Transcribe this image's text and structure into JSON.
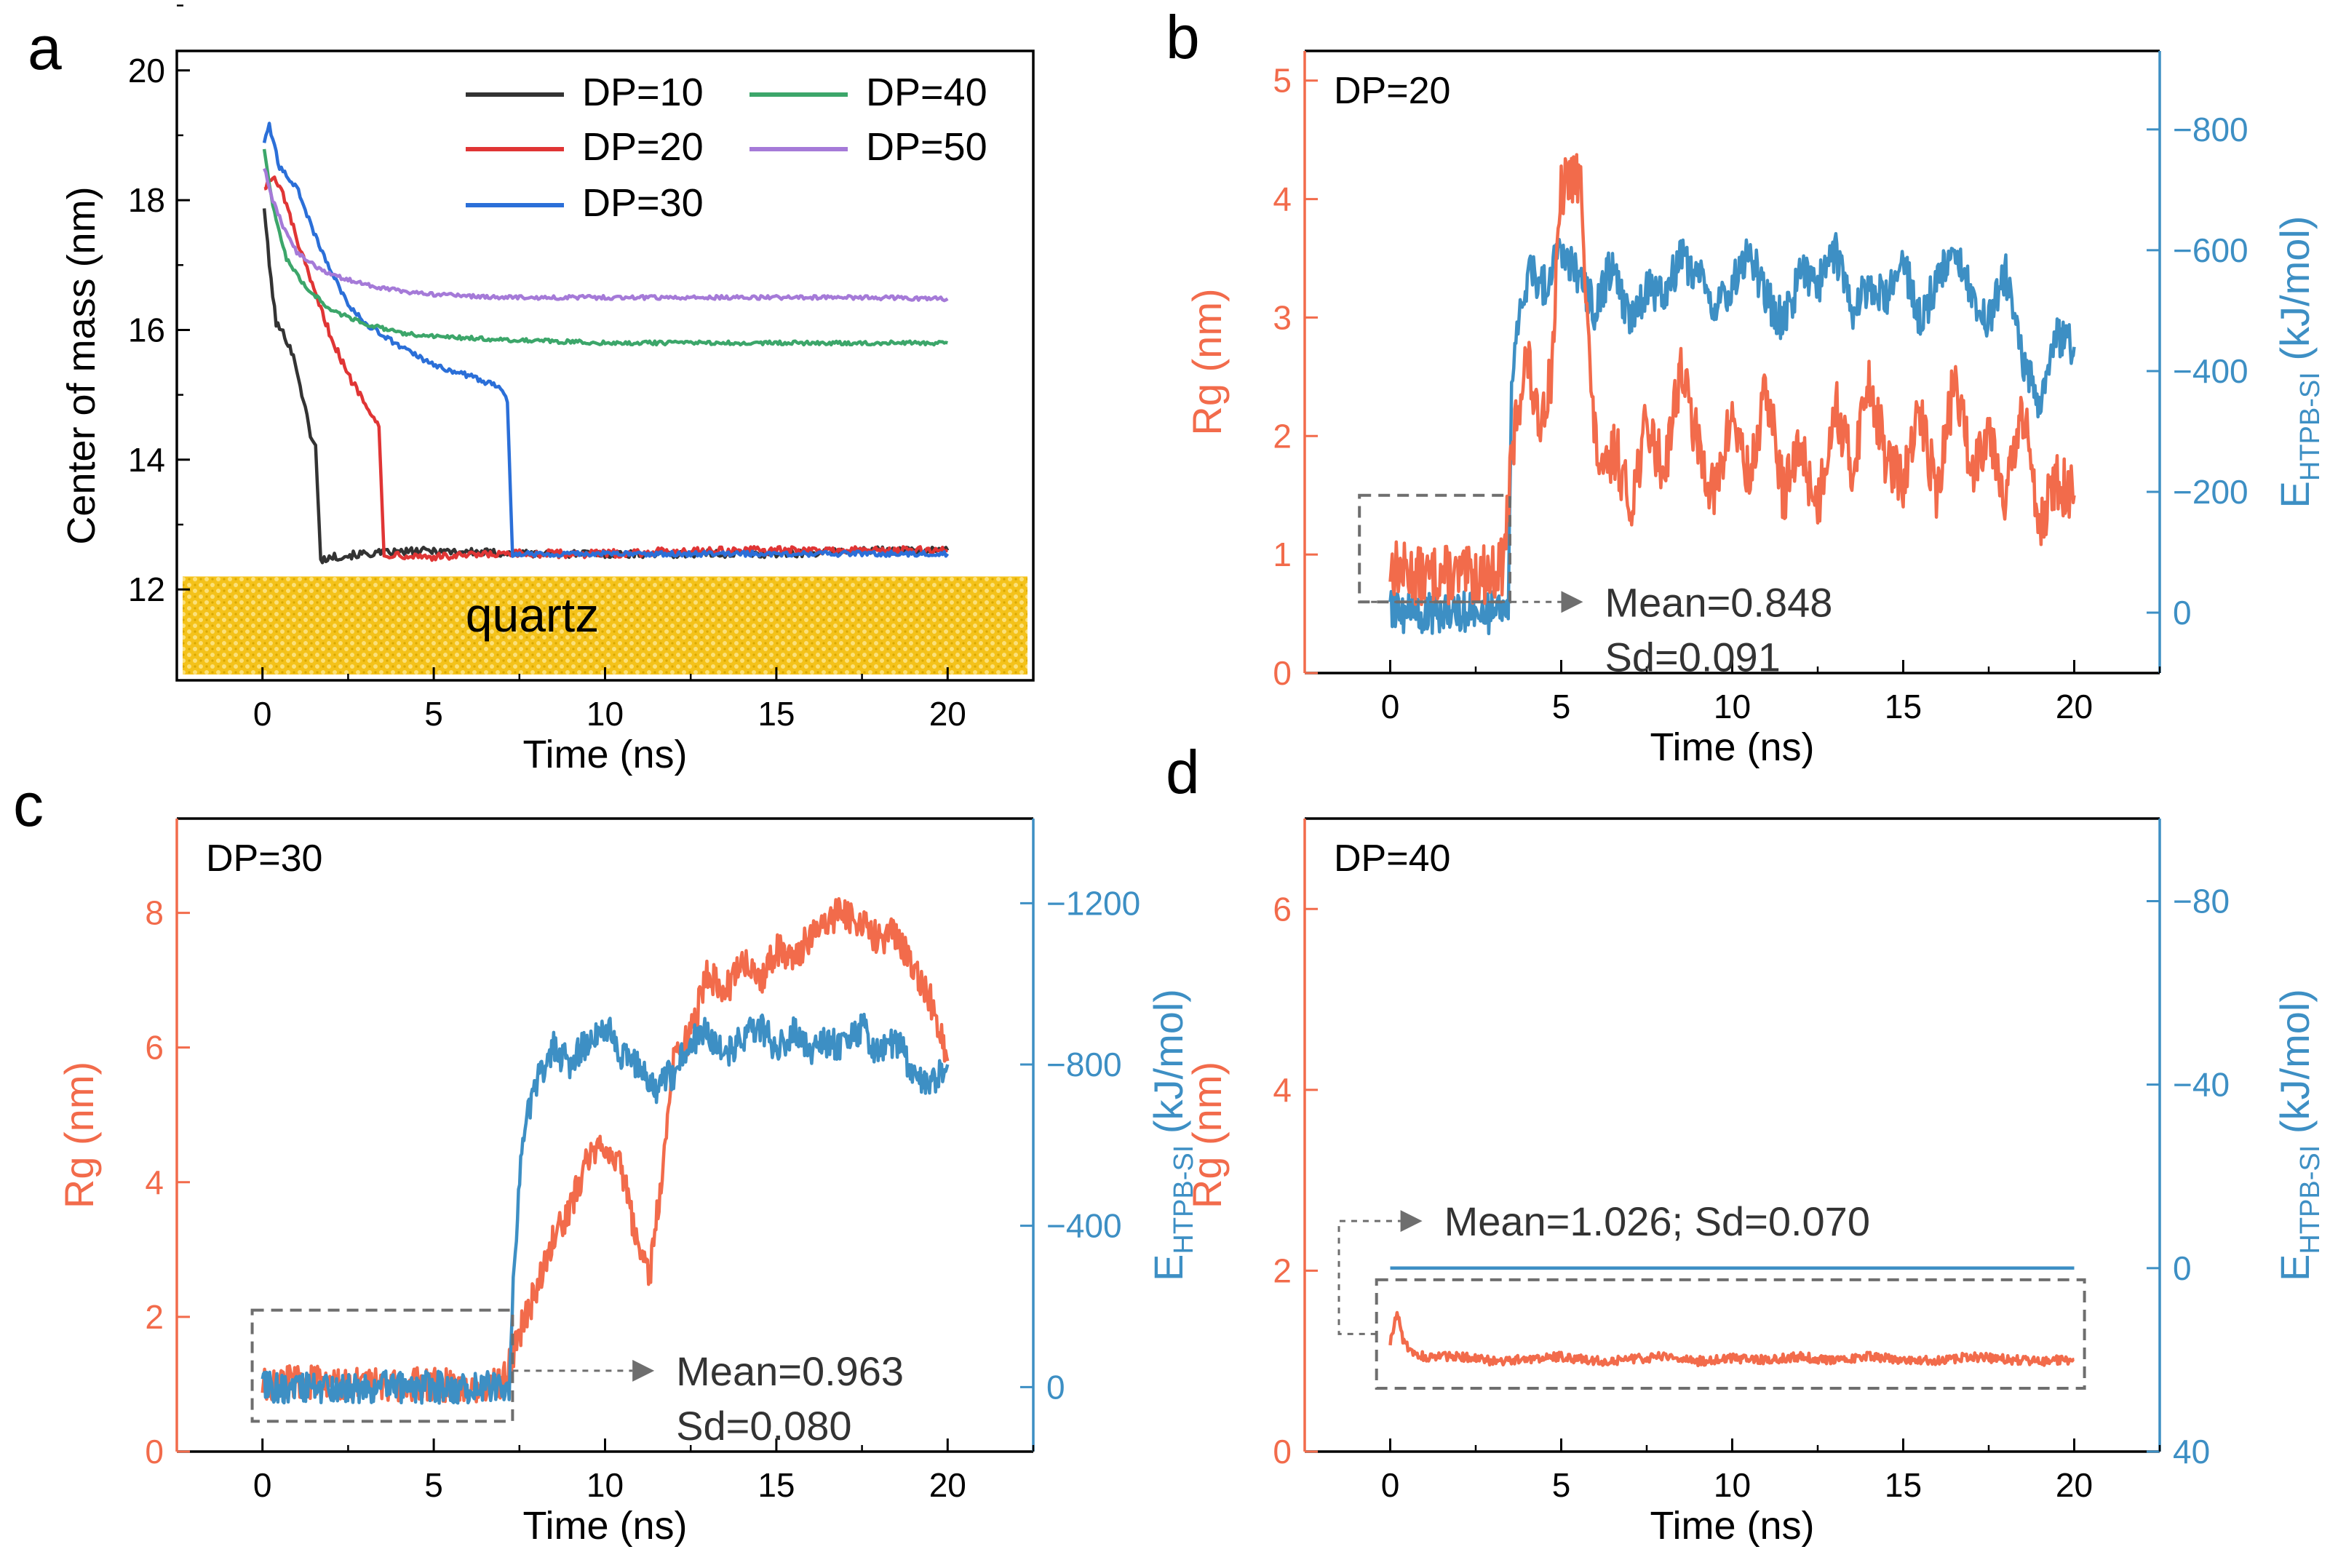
{
  "figure": {
    "colors": {
      "rg": "#f26b4b",
      "energy": "#3d8fc4",
      "axis": "#000000",
      "dash": "#6e6e6e",
      "quartz": "#f2c200"
    },
    "panels": {
      "a": {
        "label": "a",
        "xlabel": "Time (ns)",
        "ylabel": "Center of mass (nm)",
        "x_ticks": [
          "0",
          "5",
          "10",
          "15",
          "20"
        ],
        "y_ticks": [
          "12",
          "14",
          "16",
          "18",
          "20"
        ],
        "substrate_label": "quartz"
      },
      "b": {
        "label": "b",
        "title": "DP=20",
        "xlabel": "Time (ns)",
        "ylabel_left": "Rg (nm)",
        "ylabel_right_base": "E",
        "ylabel_right_sub": "HTPB-SI",
        "ylabel_right_unit": " (kJ/mol)",
        "x_ticks": [
          "0",
          "5",
          "10",
          "15",
          "20"
        ],
        "y_left_ticks": [
          "0",
          "1",
          "2",
          "3",
          "4",
          "5"
        ],
        "y_right_ticks": [
          "0",
          "−200",
          "−400",
          "−600",
          "−800"
        ],
        "annotation_lines": [
          "Mean=0.848",
          "Sd=0.091"
        ]
      },
      "c": {
        "label": "c",
        "title": "DP=30",
        "xlabel": "Time (ns)",
        "ylabel_left": "Rg (nm)",
        "ylabel_right_base": "E",
        "ylabel_right_sub": "HTPB-SI",
        "ylabel_right_unit": " (kJ/mol)",
        "x_ticks": [
          "0",
          "5",
          "10",
          "15",
          "20"
        ],
        "y_left_ticks": [
          "0",
          "2",
          "4",
          "6",
          "8"
        ],
        "y_right_ticks": [
          "0",
          "−400",
          "−800",
          "−1200"
        ],
        "annotation_lines": [
          "Mean=0.963",
          "Sd=0.080"
        ]
      },
      "d": {
        "label": "d",
        "title": "DP=40",
        "xlabel": "Time (ns)",
        "ylabel_left": "Rg (nm)",
        "ylabel_right_base": "E",
        "ylabel_right_sub": "HTPB-SI",
        "ylabel_right_unit": " (kJ/mol)",
        "x_ticks": [
          "0",
          "5",
          "10",
          "15",
          "20"
        ],
        "y_left_ticks": [
          "0",
          "2",
          "4",
          "6"
        ],
        "y_right_ticks": [
          "40",
          "0",
          "−40",
          "−80"
        ],
        "annotation_lines": [
          "Mean=1.026; Sd=0.070"
        ]
      }
    }
  },
  "chart_data": [
    {
      "id": "a",
      "type": "line",
      "title": "",
      "xlabel": "Time (ns)",
      "ylabel": "Center of mass (nm)",
      "xlim": [
        -2.5,
        22.5
      ],
      "ylim": [
        10.6,
        20.3
      ],
      "grid": false,
      "legend": "top-right",
      "annotation": "quartz",
      "substrate_top": 12.2,
      "series": [
        {
          "name": "DP=10",
          "color": "#333333",
          "x": [
            0.05,
            0.2,
            0.4,
            0.6,
            0.8,
            1.0,
            1.2,
            1.4,
            1.55,
            1.7,
            2.0,
            3.0,
            5.0,
            7.5,
            10,
            12.5,
            15,
            17.5,
            20
          ],
          "y": [
            17.9,
            17.0,
            16.1,
            15.95,
            15.75,
            15.4,
            14.9,
            14.4,
            14.2,
            12.45,
            12.5,
            12.55,
            12.6,
            12.55,
            12.55,
            12.55,
            12.55,
            12.6,
            12.6
          ]
        },
        {
          "name": "DP=20",
          "color": "#e03535",
          "x": [
            0.05,
            0.3,
            0.6,
            1.0,
            1.5,
            2.0,
            2.5,
            3.0,
            3.4,
            3.55,
            3.8,
            5.0,
            7.5,
            10,
            12.5,
            15,
            17.5,
            20
          ],
          "y": [
            18.2,
            18.35,
            18.1,
            17.4,
            16.6,
            15.9,
            15.3,
            14.9,
            14.5,
            12.5,
            12.55,
            12.5,
            12.55,
            12.55,
            12.6,
            12.6,
            12.6,
            12.6
          ]
        },
        {
          "name": "DP=30",
          "color": "#2b6fd8",
          "x": [
            0.05,
            0.2,
            0.5,
            1.0,
            1.5,
            2.0,
            2.5,
            3.0,
            4.0,
            5.0,
            6.0,
            7.0,
            7.15,
            7.3,
            7.6,
            10,
            12.5,
            15,
            17.5,
            20
          ],
          "y": [
            18.9,
            19.15,
            18.5,
            18.2,
            17.5,
            16.9,
            16.4,
            16.1,
            15.75,
            15.45,
            15.3,
            15.1,
            14.9,
            12.55,
            12.55,
            12.55,
            12.55,
            12.55,
            12.55,
            12.55
          ]
        },
        {
          "name": "DP=40",
          "color": "#3ca66a",
          "x": [
            0.05,
            0.3,
            0.7,
            1.2,
            2.0,
            3.0,
            4.0,
            5.0,
            7.0,
            10,
            12.5,
            15,
            17.5,
            20
          ],
          "y": [
            18.8,
            17.9,
            17.1,
            16.7,
            16.3,
            16.1,
            15.95,
            15.9,
            15.85,
            15.8,
            15.8,
            15.8,
            15.8,
            15.8
          ]
        },
        {
          "name": "DP=50",
          "color": "#a57ad8",
          "x": [
            0.05,
            0.3,
            0.6,
            1.0,
            1.5,
            2.0,
            3.0,
            4.0,
            5.0,
            7.0,
            10,
            12.5,
            15,
            17.5,
            20
          ],
          "y": [
            18.5,
            18.0,
            17.6,
            17.2,
            17.0,
            16.85,
            16.7,
            16.6,
            16.55,
            16.5,
            16.5,
            16.5,
            16.5,
            16.5,
            16.48
          ]
        }
      ]
    },
    {
      "id": "b",
      "type": "line",
      "title": "DP=20",
      "xlabel": "Time (ns)",
      "ylabel": "Rg (nm)",
      "ylabel_right": "EHTPB-SI (kJ/mol)",
      "xlim": [
        -2.5,
        22.5
      ],
      "ylim": [
        0,
        5.25
      ],
      "ylim_right": [
        100,
        -930
      ],
      "grid": false,
      "series": [
        {
          "name": "Rg",
          "axis": "left",
          "color": "#f26b4b",
          "x": [
            0,
            0.5,
            1.0,
            1.5,
            2.0,
            2.5,
            3.0,
            3.3,
            3.5,
            3.7,
            4.0,
            4.3,
            4.7,
            5.0,
            5.3,
            5.6,
            5.9,
            6.2,
            6.6,
            7.0,
            7.5,
            8.0,
            8.5,
            9.0,
            9.5,
            10.0,
            10.5,
            11.0,
            11.5,
            12.0,
            12.5,
            13.0,
            13.5,
            14.0,
            14.5,
            15.0,
            15.5,
            16.0,
            16.5,
            17.0,
            17.5,
            18.0,
            18.5,
            19.0,
            19.5,
            20.0
          ],
          "y": [
            0.9,
            0.85,
            0.8,
            0.85,
            0.8,
            0.82,
            0.85,
            0.9,
            1.6,
            2.2,
            2.7,
            2.1,
            2.5,
            4.05,
            4.2,
            4.1,
            2.2,
            1.6,
            1.9,
            1.4,
            2.1,
            1.7,
            2.6,
            1.9,
            1.5,
            2.2,
            1.6,
            2.4,
            1.5,
            1.9,
            1.4,
            2.3,
            1.7,
            2.5,
            1.8,
            1.6,
            2.2,
            1.5,
            2.5,
            1.7,
            2.1,
            1.5,
            2.2,
            1.3,
            1.6,
            1.5
          ]
        },
        {
          "name": "EHTPB-SI",
          "axis": "right",
          "color": "#3d8fc4",
          "x": [
            0,
            3.45,
            3.55,
            3.8,
            4.1,
            4.5,
            5.0,
            5.5,
            6.0,
            6.5,
            7.0,
            7.5,
            8.0,
            8.5,
            9.0,
            9.5,
            10.0,
            10.5,
            11.0,
            11.5,
            12.0,
            12.5,
            13.0,
            13.5,
            14.0,
            14.5,
            15.0,
            15.5,
            16.0,
            16.5,
            17.0,
            17.5,
            18.0,
            18.5,
            19.0,
            19.5,
            20.0
          ],
          "y": [
            0,
            0,
            -380,
            -520,
            -560,
            -540,
            -600,
            -560,
            -500,
            -580,
            -480,
            -540,
            -520,
            -590,
            -560,
            -500,
            -540,
            -600,
            -520,
            -480,
            -560,
            -540,
            -600,
            -500,
            -540,
            -520,
            -580,
            -480,
            -550,
            -600,
            -520,
            -480,
            -560,
            -420,
            -350,
            -460,
            -440
          ]
        }
      ]
    },
    {
      "id": "c",
      "type": "line",
      "title": "DP=30",
      "xlabel": "Time (ns)",
      "ylabel": "Rg (nm)",
      "ylabel_right": "EHTPB-SI (kJ/mol)",
      "xlim": [
        -2.5,
        22.5
      ],
      "ylim": [
        0,
        9.4
      ],
      "ylim_right": [
        160,
        -1410
      ],
      "grid": false,
      "series": [
        {
          "name": "Rg",
          "axis": "left",
          "color": "#f26b4b",
          "x": [
            0,
            1,
            2,
            3,
            4,
            5,
            6,
            7,
            7.3,
            7.6,
            8.0,
            8.5,
            9.0,
            9.5,
            10.0,
            10.5,
            11.0,
            11.3,
            11.7,
            12.0,
            12.5,
            13.0,
            13.5,
            14.0,
            14.5,
            15.0,
            15.5,
            16.0,
            16.5,
            17.0,
            17.5,
            18.0,
            18.5,
            19.0,
            19.5,
            20.0
          ],
          "y": [
            1.0,
            1.05,
            1.0,
            0.98,
            1.0,
            1.0,
            0.98,
            1.0,
            1.4,
            1.9,
            2.4,
            3.2,
            3.6,
            4.4,
            4.6,
            4.2,
            2.9,
            2.6,
            4.3,
            5.8,
            6.2,
            7.1,
            6.8,
            7.3,
            6.9,
            7.5,
            7.2,
            7.7,
            7.9,
            8.0,
            7.8,
            7.6,
            7.7,
            7.2,
            6.7,
            5.8
          ]
        },
        {
          "name": "EHTPB-SI",
          "axis": "right",
          "color": "#3d8fc4",
          "x": [
            0,
            7.2,
            7.35,
            7.6,
            8.0,
            8.5,
            9.0,
            9.5,
            10.0,
            10.5,
            11.0,
            11.5,
            12.0,
            12.5,
            13.0,
            13.5,
            14.0,
            14.5,
            15.0,
            15.5,
            16.0,
            16.5,
            17.0,
            17.5,
            18.0,
            18.5,
            19.0,
            19.5,
            20.0
          ],
          "y": [
            0,
            0,
            -300,
            -620,
            -760,
            -840,
            -800,
            -860,
            -900,
            -820,
            -800,
            -740,
            -780,
            -860,
            -880,
            -820,
            -860,
            -900,
            -840,
            -880,
            -820,
            -860,
            -840,
            -900,
            -820,
            -860,
            -780,
            -740,
            -800
          ]
        }
      ]
    },
    {
      "id": "d",
      "type": "line",
      "title": "DP=40",
      "xlabel": "Time (ns)",
      "ylabel": "Rg (nm)",
      "ylabel_right": "EHTPB-SI (kJ/mol)",
      "xlim": [
        -2.5,
        22.5
      ],
      "ylim": [
        0,
        7.0
      ],
      "ylim_right": [
        40,
        -98
      ],
      "grid": false,
      "series": [
        {
          "name": "Rg",
          "axis": "left",
          "color": "#f26b4b",
          "x": [
            0,
            0.2,
            0.4,
            0.7,
            1.0,
            2.0,
            3.0,
            4.0,
            5.0,
            6.0,
            7.0,
            8.0,
            9.0,
            10.0,
            11.0,
            12.0,
            13.0,
            14.0,
            15.0,
            16.0,
            17.0,
            18.0,
            19.0,
            20.0
          ],
          "y": [
            1.2,
            1.55,
            1.2,
            1.1,
            1.05,
            1.05,
            1.0,
            1.02,
            1.05,
            1.0,
            1.02,
            1.05,
            1.0,
            1.03,
            1.02,
            1.05,
            1.0,
            1.05,
            1.02,
            1.0,
            1.05,
            1.02,
            1.0,
            1.02
          ]
        },
        {
          "name": "EHTPB-SI",
          "axis": "right",
          "color": "#3d8fc4",
          "x": [
            0,
            20
          ],
          "y": [
            0,
            0
          ]
        }
      ]
    }
  ]
}
